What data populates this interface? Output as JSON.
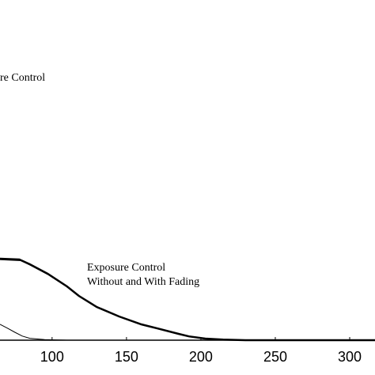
{
  "chart_data": {
    "type": "line",
    "annotations": [
      "re Control",
      "Exposure Control",
      "Without and With Fading"
    ],
    "xlim": [
      65,
      317
    ],
    "xticks": [
      100,
      150,
      200,
      250,
      300
    ],
    "ylim": [
      0,
      100
    ],
    "series": [
      {
        "color": "#000000",
        "width": 2.5,
        "x": [
          65,
          78,
          85,
          97,
          110,
          118,
          130,
          145,
          160,
          171,
          185,
          192,
          203,
          215,
          230,
          317
        ],
        "values": [
          25.75,
          25.5,
          24,
          21,
          17,
          14,
          10.5,
          7.5,
          5,
          3.7,
          2,
          1.2,
          0.5,
          0.2,
          0,
          0
        ]
      },
      {
        "color": "#000000",
        "width": 1.5,
        "x": [
          65,
          79,
          86,
          98,
          111,
          119,
          131,
          146,
          161,
          172,
          186,
          193,
          204,
          216,
          231,
          317
        ],
        "values": [
          25.5,
          25.2,
          23.6,
          20.6,
          16.6,
          13.7,
          10.2,
          7.3,
          4.8,
          3.5,
          1.9,
          1.1,
          0.4,
          0.15,
          0,
          0
        ]
      },
      {
        "color": "#000000",
        "width": 1,
        "x": [
          65,
          70,
          75,
          80,
          85,
          95,
          110
        ],
        "values": [
          5,
          3.8,
          2.5,
          1.3,
          0.6,
          0.2,
          0
        ]
      }
    ]
  }
}
